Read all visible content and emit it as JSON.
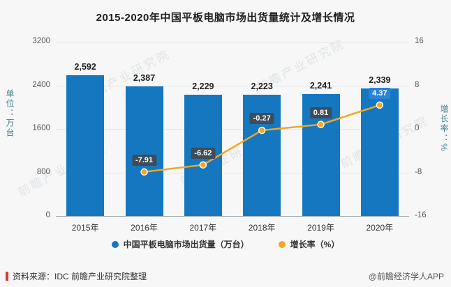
{
  "title": "2015-2020年中国平板电脑市场出货量统计及增长情况",
  "watermark": "前瞻产业研究院",
  "chart_data": {
    "type": "combo",
    "categories": [
      "2015年",
      "2016年",
      "2017年",
      "2018年",
      "2019年",
      "2020年"
    ],
    "series": [
      {
        "name": "中国平板电脑市场出货量（万台）",
        "type": "bar",
        "values": [
          2592,
          2387,
          2229,
          2223,
          2241,
          2339
        ],
        "labels": [
          "2,592",
          "2,387",
          "2,229",
          "2,223",
          "2,241",
          "2,339"
        ],
        "color": "#1577c0"
      },
      {
        "name": "增长率（%）",
        "type": "line",
        "values": [
          null,
          -7.91,
          -6.62,
          -0.27,
          0.81,
          4.37
        ],
        "labels": [
          "",
          "-7.91",
          "-6.62",
          "-0.27",
          "0.81",
          "4.37"
        ],
        "color": "#f5a521",
        "label_bg": [
          "",
          "#3e4c59",
          "#3e4c59",
          "#3e4c59",
          "#3e4c59",
          "#2b83d6"
        ]
      }
    ],
    "left_axis": {
      "label": "单位：万台",
      "min": 0,
      "max": 3200,
      "ticks": [
        0,
        800,
        1600,
        2400,
        3200
      ]
    },
    "right_axis": {
      "label": "增长率：%",
      "min": -16,
      "max": 16,
      "ticks": [
        -16,
        -8,
        0,
        8,
        16
      ]
    },
    "grid": true,
    "legend_position": "bottom"
  },
  "footer": {
    "source": "资料来源：IDC 前瞻产业研究院整理",
    "credit": "@前瞻经济学人APP"
  }
}
